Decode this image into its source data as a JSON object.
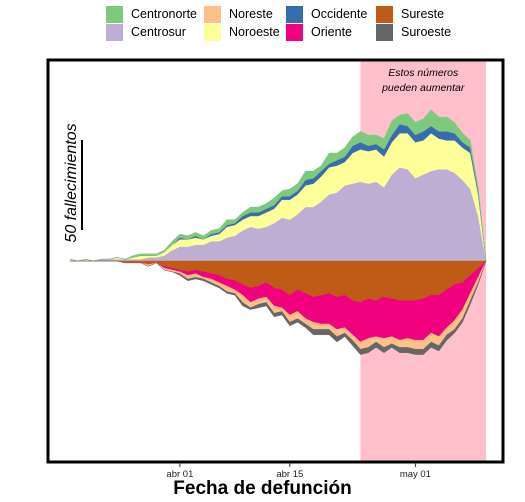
{
  "chart_data": {
    "type": "area",
    "xlabel": "Fecha de defunción",
    "ylabel": "",
    "scale_bar_label": "50 fallecimientos",
    "scale_bar_value": 50,
    "annotation": {
      "line1": "Estos números",
      "line2": "pueden aumentar"
    },
    "shaded_region": {
      "start": "2020-04-24",
      "end": "2020-05-10",
      "color": "#FFC0CB"
    },
    "x_ticks": [
      {
        "date": "2020-04-01",
        "label": "abr 01"
      },
      {
        "date": "2020-04-15",
        "label": "abr 15"
      },
      {
        "date": "2020-05-01",
        "label": "may 01"
      }
    ],
    "x": [
      "2020-03-18",
      "2020-03-19",
      "2020-03-20",
      "2020-03-21",
      "2020-03-22",
      "2020-03-23",
      "2020-03-24",
      "2020-03-25",
      "2020-03-26",
      "2020-03-27",
      "2020-03-28",
      "2020-03-29",
      "2020-03-30",
      "2020-03-31",
      "2020-04-01",
      "2020-04-02",
      "2020-04-03",
      "2020-04-04",
      "2020-04-05",
      "2020-04-06",
      "2020-04-07",
      "2020-04-08",
      "2020-04-09",
      "2020-04-10",
      "2020-04-11",
      "2020-04-12",
      "2020-04-13",
      "2020-04-14",
      "2020-04-15",
      "2020-04-16",
      "2020-04-17",
      "2020-04-18",
      "2020-04-19",
      "2020-04-20",
      "2020-04-21",
      "2020-04-22",
      "2020-04-23",
      "2020-04-24",
      "2020-04-25",
      "2020-04-26",
      "2020-04-27",
      "2020-04-28",
      "2020-04-29",
      "2020-04-30",
      "2020-05-01",
      "2020-05-02",
      "2020-05-03",
      "2020-05-04",
      "2020-05-05",
      "2020-05-06",
      "2020-05-07",
      "2020-05-08",
      "2020-05-09",
      "2020-05-10"
    ],
    "series_above": [
      "Centrosur",
      "Noroeste",
      "Occidente",
      "Centronorte"
    ],
    "series_below": [
      "Sureste",
      "Oriente",
      "Noreste",
      "Suroeste"
    ],
    "series": [
      {
        "name": "Centronorte",
        "color": "#7FC97F",
        "values": [
          0,
          0,
          0,
          0,
          0,
          0,
          0,
          0,
          1,
          1,
          1,
          1,
          1,
          2,
          2,
          2,
          2,
          2,
          2,
          2,
          3,
          2,
          2,
          3,
          3,
          3,
          4,
          3,
          4,
          4,
          5,
          4,
          3,
          6,
          4,
          5,
          5,
          6,
          6,
          5,
          6,
          8,
          5,
          7,
          7,
          7,
          9,
          8,
          8,
          6,
          5,
          4,
          2,
          0
        ]
      },
      {
        "name": "Centrosur",
        "color": "#BEAED4",
        "values": [
          0,
          0,
          0,
          0,
          1,
          1,
          1,
          1,
          1,
          1,
          2,
          2,
          3,
          6,
          8,
          8,
          9,
          9,
          11,
          11,
          13,
          14,
          17,
          19,
          18,
          19,
          21,
          24,
          23,
          26,
          30,
          30,
          33,
          37,
          38,
          42,
          43,
          44,
          43,
          44,
          41,
          48,
          52,
          51,
          46,
          48,
          50,
          51,
          51,
          49,
          45,
          40,
          25,
          0
        ]
      },
      {
        "name": "Noreste",
        "color": "#FDC086",
        "values": [
          0,
          0,
          0,
          0,
          0,
          0,
          0,
          0,
          0,
          0,
          1,
          0,
          1,
          1,
          1,
          2,
          2,
          1,
          2,
          2,
          3,
          2,
          4,
          3,
          3,
          3,
          4,
          2,
          4,
          4,
          3,
          4,
          3,
          3,
          4,
          3,
          3,
          4,
          5,
          3,
          5,
          4,
          4,
          5,
          5,
          5,
          5,
          5,
          4,
          5,
          5,
          4,
          3,
          0
        ]
      },
      {
        "name": "Noroeste",
        "color": "#FFFF99",
        "values": [
          1,
          0,
          1,
          0,
          0,
          0,
          1,
          0,
          1,
          2,
          1,
          1,
          2,
          3,
          4,
          4,
          4,
          3,
          3,
          4,
          6,
          6,
          6,
          6,
          7,
          8,
          8,
          10,
          11,
          11,
          12,
          13,
          14,
          15,
          15,
          13,
          17,
          18,
          18,
          18,
          17,
          18,
          19,
          20,
          20,
          19,
          21,
          17,
          16,
          18,
          18,
          20,
          12,
          0
        ]
      },
      {
        "name": "Occidente",
        "color": "#386CB0",
        "values": [
          0,
          0,
          0,
          0,
          0,
          0,
          0,
          0,
          0,
          0,
          0,
          0,
          0,
          0,
          1,
          0,
          1,
          0,
          1,
          1,
          1,
          1,
          2,
          2,
          2,
          2,
          2,
          2,
          2,
          2,
          3,
          3,
          3,
          2,
          3,
          3,
          4,
          4,
          3,
          3,
          4,
          4,
          5,
          4,
          4,
          5,
          4,
          4,
          5,
          4,
          3,
          3,
          2,
          0
        ]
      },
      {
        "name": "Oriente",
        "color": "#F0027F",
        "values": [
          0,
          0,
          0,
          0,
          0,
          0,
          0,
          0,
          0,
          0,
          0,
          0,
          1,
          1,
          1,
          2,
          2,
          3,
          3,
          4,
          4,
          5,
          6,
          8,
          7,
          8,
          10,
          10,
          11,
          12,
          14,
          14,
          16,
          17,
          18,
          18,
          19,
          22,
          22,
          20,
          23,
          21,
          22,
          21,
          22,
          23,
          21,
          23,
          21,
          20,
          15,
          10,
          5,
          0
        ]
      },
      {
        "name": "Sureste",
        "color": "#BF5B17",
        "values": [
          0,
          0,
          0,
          0,
          0,
          0,
          0,
          1,
          1,
          1,
          2,
          1,
          3,
          4,
          5,
          6,
          5,
          6,
          7,
          8,
          10,
          11,
          13,
          15,
          14,
          12,
          15,
          16,
          19,
          16,
          18,
          20,
          19,
          18,
          20,
          19,
          22,
          23,
          21,
          22,
          20,
          21,
          22,
          22,
          22,
          21,
          19,
          19,
          16,
          13,
          12,
          8,
          4,
          0
        ]
      },
      {
        "name": "Suroeste",
        "color": "#666666",
        "values": [
          0,
          0,
          0,
          0,
          0,
          0,
          0,
          0,
          0,
          0,
          0,
          0,
          0,
          0,
          1,
          1,
          1,
          1,
          1,
          1,
          1,
          1,
          2,
          1,
          2,
          2,
          2,
          2,
          2,
          2,
          2,
          3,
          3,
          3,
          3,
          2,
          3,
          3,
          3,
          3,
          3,
          2,
          3,
          3,
          3,
          3,
          3,
          3,
          3,
          2,
          2,
          2,
          1,
          0
        ]
      }
    ],
    "legend": {
      "placement": "top",
      "order": [
        "Centronorte",
        "Noreste",
        "Occidente",
        "Sureste",
        "Centrosur",
        "Noroeste",
        "Oriente",
        "Suroeste"
      ]
    },
    "grid": false
  }
}
